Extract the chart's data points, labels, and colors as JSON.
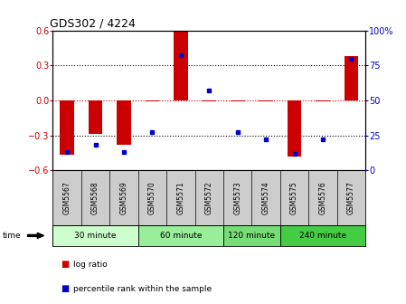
{
  "title": "GDS302 / 4224",
  "samples": [
    "GSM5567",
    "GSM5568",
    "GSM5569",
    "GSM5570",
    "GSM5571",
    "GSM5572",
    "GSM5573",
    "GSM5574",
    "GSM5575",
    "GSM5576",
    "GSM5577"
  ],
  "log_ratio": [
    -0.47,
    -0.285,
    -0.38,
    -0.01,
    0.6,
    -0.01,
    -0.01,
    -0.01,
    -0.485,
    -0.01,
    0.38
  ],
  "percentile": [
    13,
    18,
    13,
    27,
    82,
    57,
    27,
    22,
    12,
    22,
    80
  ],
  "ylim": [
    -0.6,
    0.6
  ],
  "yticks_left": [
    -0.6,
    -0.3,
    0.0,
    0.3,
    0.6
  ],
  "yticks_right": [
    0,
    25,
    50,
    75,
    100
  ],
  "time_groups": [
    {
      "label": "30 minute",
      "start": 0,
      "end": 3,
      "color": "#ccffcc"
    },
    {
      "label": "60 minute",
      "start": 3,
      "end": 6,
      "color": "#99ee99"
    },
    {
      "label": "120 minute",
      "start": 6,
      "end": 8,
      "color": "#77dd77"
    },
    {
      "label": "240 minute",
      "start": 8,
      "end": 11,
      "color": "#44cc44"
    }
  ],
  "bar_color": "#cc0000",
  "dot_color": "#0000cc",
  "bar_width": 0.5,
  "grid_color": "#000000",
  "zero_line_color": "#cc0000",
  "background_color": "#ffffff",
  "plot_bg": "#ffffff",
  "legend_lr_label": "log ratio",
  "legend_pr_label": "percentile rank within the sample"
}
